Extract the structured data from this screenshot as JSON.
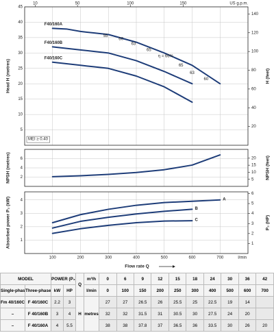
{
  "chart_data": [
    {
      "type": "line",
      "y_label": "Head H (metres)",
      "y2_label": "H (feet)",
      "x2_label": "US g.p.m.",
      "annotation": "MEI ≥ 0.40",
      "label_position": "start",
      "x": [
        100,
        150,
        200,
        250,
        300,
        400,
        500,
        600,
        700
      ],
      "series": [
        {
          "name": "F40/160A",
          "color": "#1d3c78",
          "values": [
            38,
            37.8,
            37,
            36.5,
            36,
            33.5,
            30,
            26,
            20
          ]
        },
        {
          "name": "F40/160B",
          "color": "#1d3c78",
          "values": [
            32,
            31.5,
            31,
            30.5,
            30,
            27.5,
            24,
            20,
            null
          ]
        },
        {
          "name": "F40/160C",
          "color": "#1d3c78",
          "values": [
            27,
            26.5,
            26,
            25.5,
            25,
            22.5,
            19,
            14,
            null
          ]
        }
      ],
      "xlim": [
        0,
        800
      ],
      "xticks": [
        100,
        200,
        300,
        400,
        500,
        600,
        700
      ],
      "x2ticks": [
        {
          "value": 37.9,
          "label": "10"
        },
        {
          "value": 189.3,
          "label": "50"
        },
        {
          "value": 378.5,
          "label": "100"
        },
        {
          "value": 567.8,
          "label": "150"
        }
      ],
      "ylim": [
        0,
        45
      ],
      "yticks": [
        5,
        10,
        15,
        20,
        25,
        30,
        35,
        40,
        45
      ],
      "y2lim": [
        0,
        147.6
      ],
      "y2ticks": [
        20,
        40,
        60,
        80,
        100,
        120,
        140
      ],
      "grid": true,
      "efficiency_labels": [
        {
          "text": "55",
          "x": 290,
          "y": 35.5
        },
        {
          "text": "60",
          "x": 345,
          "y": 34.5
        },
        {
          "text": "63",
          "x": 390,
          "y": 33
        },
        {
          "text": "65",
          "x": 445,
          "y": 31
        },
        {
          "text": "η = 66%",
          "x": 505,
          "y": 29
        },
        {
          "text": "65",
          "x": 560,
          "y": 26
        },
        {
          "text": "63",
          "x": 600,
          "y": 23.5
        },
        {
          "text": "60",
          "x": 650,
          "y": 21.5
        }
      ]
    },
    {
      "type": "line",
      "y_label": "NPSH (metres)",
      "y2_label": "NPSH (feet)",
      "x": [
        100,
        200,
        300,
        400,
        500,
        600,
        700
      ],
      "series": [
        {
          "color": "#1d3c78",
          "values": [
            2.1,
            2.3,
            2.6,
            3.0,
            3.6,
            4.6,
            6.8
          ]
        }
      ],
      "xlim": [
        0,
        800
      ],
      "xticks": [
        100,
        200,
        300,
        400,
        500,
        600,
        700
      ],
      "ylim": [
        0,
        8
      ],
      "yticks": [
        2,
        4,
        6
      ],
      "y2lim": [
        0,
        26.25
      ],
      "y2ticks": [
        5,
        10,
        15,
        20
      ],
      "grid": true
    },
    {
      "type": "line",
      "y_label": "Absorbed power P₂ (kW)",
      "y2_label": "P₂ (HP)",
      "x_label": "Flow rate Q",
      "x_unit": "l/min",
      "label_position": "end",
      "x": [
        100,
        200,
        300,
        400,
        500,
        600,
        700
      ],
      "series": [
        {
          "name": "A",
          "color": "#1d3c78",
          "values": [
            2.3,
            2.9,
            3.3,
            3.6,
            3.8,
            3.9,
            4.0
          ]
        },
        {
          "name": "B",
          "color": "#1d3c78",
          "values": [
            1.9,
            2.4,
            2.7,
            2.95,
            3.15,
            3.3,
            null
          ]
        },
        {
          "name": "C",
          "color": "#1d3c78",
          "values": [
            1.5,
            1.85,
            2.1,
            2.3,
            2.42,
            2.45,
            null
          ]
        }
      ],
      "xlim": [
        0,
        800
      ],
      "xticks": [
        100,
        200,
        300,
        400,
        500,
        600,
        700
      ],
      "ylim": [
        0,
        4.6
      ],
      "yticks": [
        1,
        2,
        3,
        4
      ],
      "y2lim": [
        0,
        6.17
      ],
      "y2ticks": [
        1,
        2,
        3,
        4,
        5,
        6
      ],
      "grid": true
    }
  ],
  "table": {
    "model": "MODEL",
    "single_phase": "Single-phase",
    "three_phase": "Three-phase",
    "power": "POWER (P₂)",
    "kw": "kW",
    "hp": "HP",
    "q": "Q",
    "q_unit1": "m³/h",
    "q_unit2": "l/min",
    "h": "H",
    "h_unit": "metres",
    "q_m3h": [
      0,
      6,
      9,
      12,
      15,
      18,
      24,
      30,
      36,
      42
    ],
    "q_lmin": [
      0,
      100,
      150,
      200,
      250,
      300,
      400,
      500,
      600,
      700
    ],
    "rows": [
      {
        "single": "Fm 40/160C",
        "three": "F 40/160C",
        "kw": 2.2,
        "hp": 3,
        "head": [
          27,
          27,
          26.5,
          26,
          25.5,
          25,
          22.5,
          19,
          14,
          null
        ]
      },
      {
        "single": "–",
        "three": "F 40/160B",
        "kw": 3,
        "hp": 4,
        "head": [
          32,
          32,
          31.5,
          31,
          30.5,
          30,
          27.5,
          24,
          20,
          null
        ]
      },
      {
        "single": "–",
        "three": "F 40/160A",
        "kw": 4,
        "hp": 5.5,
        "head": [
          38,
          38,
          37.8,
          37,
          36.5,
          36,
          33.5,
          30,
          26,
          20
        ]
      }
    ]
  }
}
